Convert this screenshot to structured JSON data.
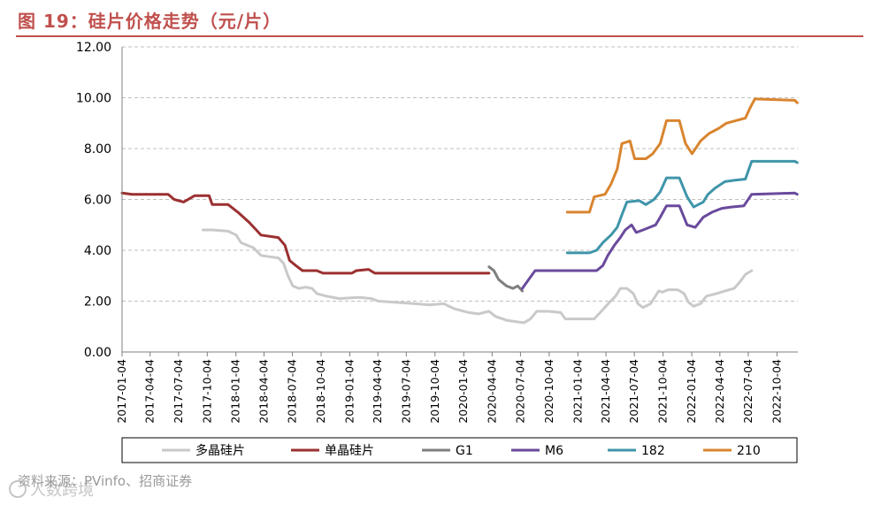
{
  "page": {
    "title": "图 19：硅片价格走势（元/片）",
    "source": "资料来源：PVinfo、招商证券",
    "watermark": "人数跨境",
    "watermark_icon": "chat-bubble-icon"
  },
  "colors": {
    "title": "#c0504d",
    "grid": "#bfbfbf",
    "axis_text": "#000000"
  },
  "chart_data": {
    "type": "line",
    "title": "图 19：硅片价格走势（元/片）",
    "xlabel": "",
    "ylabel": "",
    "ylim": [
      0,
      12
    ],
    "yticks": [
      "0.00",
      "2.00",
      "4.00",
      "6.00",
      "8.00",
      "10.00",
      "12.00"
    ],
    "xlim": [
      "2017-01-04",
      "2022-12-10"
    ],
    "xticks": [
      "2017-01-04",
      "2017-04-04",
      "2017-07-04",
      "2017-10-04",
      "2018-01-04",
      "2018-04-04",
      "2018-07-04",
      "2018-10-04",
      "2019-01-04",
      "2019-04-04",
      "2019-07-04",
      "2019-10-04",
      "2020-01-04",
      "2020-04-04",
      "2020-07-04",
      "2020-10-04",
      "2021-01-04",
      "2021-04-04",
      "2021-07-04",
      "2021-10-04",
      "2022-01-04",
      "2022-04-04",
      "2022-07-04",
      "2022-10-04"
    ],
    "grid": "horizontal dashed",
    "legend_position": "bottom",
    "series": [
      {
        "name": "多晶硅片",
        "color": "#c9c9c9",
        "points": [
          [
            "2017-09-20",
            4.8
          ],
          [
            "2017-10-20",
            4.8
          ],
          [
            "2017-12-10",
            4.75
          ],
          [
            "2018-01-05",
            4.6
          ],
          [
            "2018-01-20",
            4.3
          ],
          [
            "2018-03-01",
            4.1
          ],
          [
            "2018-03-25",
            3.8
          ],
          [
            "2018-04-20",
            3.75
          ],
          [
            "2018-05-20",
            3.7
          ],
          [
            "2018-06-05",
            3.5
          ],
          [
            "2018-06-20",
            3.0
          ],
          [
            "2018-07-05",
            2.6
          ],
          [
            "2018-07-25",
            2.5
          ],
          [
            "2018-08-15",
            2.55
          ],
          [
            "2018-09-05",
            2.5
          ],
          [
            "2018-09-20",
            2.3
          ],
          [
            "2018-10-20",
            2.2
          ],
          [
            "2018-12-01",
            2.1
          ],
          [
            "2019-02-01",
            2.15
          ],
          [
            "2019-03-15",
            2.1
          ],
          [
            "2019-04-05",
            2.0
          ],
          [
            "2019-06-01",
            1.95
          ],
          [
            "2019-08-01",
            1.9
          ],
          [
            "2019-09-15",
            1.85
          ],
          [
            "2019-11-01",
            1.9
          ],
          [
            "2019-12-05",
            1.7
          ],
          [
            "2020-01-20",
            1.55
          ],
          [
            "2020-02-20",
            1.5
          ],
          [
            "2020-03-25",
            1.6
          ],
          [
            "2020-04-15",
            1.4
          ],
          [
            "2020-05-20",
            1.25
          ],
          [
            "2020-06-15",
            1.2
          ],
          [
            "2020-07-15",
            1.15
          ],
          [
            "2020-08-05",
            1.3
          ],
          [
            "2020-08-25",
            1.6
          ],
          [
            "2020-10-01",
            1.6
          ],
          [
            "2020-11-10",
            1.55
          ],
          [
            "2020-11-25",
            1.3
          ],
          [
            "2021-01-20",
            1.3
          ],
          [
            "2021-02-25",
            1.3
          ],
          [
            "2021-03-20",
            1.6
          ],
          [
            "2021-04-15",
            1.95
          ],
          [
            "2021-05-05",
            2.2
          ],
          [
            "2021-05-20",
            2.5
          ],
          [
            "2021-06-10",
            2.5
          ],
          [
            "2021-07-01",
            2.3
          ],
          [
            "2021-07-15",
            1.9
          ],
          [
            "2021-08-01",
            1.75
          ],
          [
            "2021-08-25",
            1.9
          ],
          [
            "2021-09-20",
            2.4
          ],
          [
            "2021-10-01",
            2.35
          ],
          [
            "2021-10-20",
            2.45
          ],
          [
            "2021-11-20",
            2.45
          ],
          [
            "2021-12-10",
            2.3
          ],
          [
            "2021-12-25",
            1.95
          ],
          [
            "2022-01-10",
            1.8
          ],
          [
            "2022-02-01",
            1.9
          ],
          [
            "2022-02-20",
            2.2
          ],
          [
            "2022-03-25",
            2.3
          ],
          [
            "2022-04-20",
            2.4
          ],
          [
            "2022-05-20",
            2.5
          ],
          [
            "2022-06-10",
            2.8
          ],
          [
            "2022-06-25",
            3.05
          ],
          [
            "2022-07-15",
            3.2
          ]
        ]
      },
      {
        "name": "单晶硅片",
        "color": "#9b3030",
        "points": [
          [
            "2017-01-04",
            6.25
          ],
          [
            "2017-02-05",
            6.2
          ],
          [
            "2017-06-01",
            6.2
          ],
          [
            "2017-06-20",
            6.0
          ],
          [
            "2017-07-20",
            5.9
          ],
          [
            "2017-08-25",
            6.15
          ],
          [
            "2017-10-10",
            6.15
          ],
          [
            "2017-10-20",
            5.8
          ],
          [
            "2017-12-10",
            5.8
          ],
          [
            "2018-01-10",
            5.5
          ],
          [
            "2018-02-15",
            5.1
          ],
          [
            "2018-03-10",
            4.8
          ],
          [
            "2018-03-25",
            4.6
          ],
          [
            "2018-05-20",
            4.5
          ],
          [
            "2018-06-10",
            4.2
          ],
          [
            "2018-06-25",
            3.6
          ],
          [
            "2018-07-15",
            3.4
          ],
          [
            "2018-08-05",
            3.2
          ],
          [
            "2018-09-20",
            3.2
          ],
          [
            "2018-10-10",
            3.1
          ],
          [
            "2019-01-10",
            3.1
          ],
          [
            "2019-01-25",
            3.2
          ],
          [
            "2019-03-05",
            3.25
          ],
          [
            "2019-03-25",
            3.1
          ],
          [
            "2020-03-25",
            3.1
          ]
        ]
      },
      {
        "name": "G1",
        "color": "#7f7f7f",
        "points": [
          [
            "2020-03-25",
            3.35
          ],
          [
            "2020-04-10",
            3.2
          ],
          [
            "2020-04-25",
            2.85
          ],
          [
            "2020-05-20",
            2.6
          ],
          [
            "2020-06-10",
            2.5
          ],
          [
            "2020-06-25",
            2.6
          ],
          [
            "2020-07-10",
            2.4
          ]
        ]
      },
      {
        "name": "M6",
        "color": "#6a4a9c",
        "points": [
          [
            "2020-07-10",
            2.5
          ],
          [
            "2020-08-05",
            2.95
          ],
          [
            "2020-08-20",
            3.2
          ],
          [
            "2021-03-05",
            3.2
          ],
          [
            "2021-03-25",
            3.4
          ],
          [
            "2021-04-10",
            3.8
          ],
          [
            "2021-05-01",
            4.2
          ],
          [
            "2021-05-20",
            4.5
          ],
          [
            "2021-06-05",
            4.8
          ],
          [
            "2021-06-25",
            5.0
          ],
          [
            "2021-07-10",
            4.7
          ],
          [
            "2021-08-01",
            4.8
          ],
          [
            "2021-09-10",
            5.0
          ],
          [
            "2021-09-25",
            5.3
          ],
          [
            "2021-10-15",
            5.75
          ],
          [
            "2021-11-25",
            5.75
          ],
          [
            "2021-12-20",
            5.0
          ],
          [
            "2022-01-15",
            4.9
          ],
          [
            "2022-02-10",
            5.3
          ],
          [
            "2022-03-10",
            5.5
          ],
          [
            "2022-04-10",
            5.65
          ],
          [
            "2022-05-10",
            5.7
          ],
          [
            "2022-06-20",
            5.75
          ],
          [
            "2022-07-15",
            6.2
          ],
          [
            "2022-11-30",
            6.25
          ],
          [
            "2022-12-08",
            6.2
          ]
        ]
      },
      {
        "name": "182",
        "color": "#3f95aa",
        "points": [
          [
            "2020-12-01",
            3.9
          ],
          [
            "2021-02-10",
            3.9
          ],
          [
            "2021-03-05",
            4.0
          ],
          [
            "2021-03-25",
            4.3
          ],
          [
            "2021-04-20",
            4.6
          ],
          [
            "2021-05-10",
            4.9
          ],
          [
            "2021-05-25",
            5.4
          ],
          [
            "2021-06-10",
            5.9
          ],
          [
            "2021-07-20",
            5.95
          ],
          [
            "2021-08-10",
            5.8
          ],
          [
            "2021-09-05",
            6.0
          ],
          [
            "2021-09-25",
            6.3
          ],
          [
            "2021-10-15",
            6.85
          ],
          [
            "2021-11-25",
            6.85
          ],
          [
            "2021-12-20",
            6.1
          ],
          [
            "2022-01-10",
            5.7
          ],
          [
            "2022-02-10",
            5.9
          ],
          [
            "2022-02-25",
            6.2
          ],
          [
            "2022-03-20",
            6.45
          ],
          [
            "2022-04-20",
            6.7
          ],
          [
            "2022-05-20",
            6.75
          ],
          [
            "2022-06-25",
            6.8
          ],
          [
            "2022-07-15",
            7.5
          ],
          [
            "2022-11-30",
            7.5
          ],
          [
            "2022-12-08",
            7.45
          ]
        ]
      },
      {
        "name": "210",
        "color": "#d9852f",
        "points": [
          [
            "2020-12-01",
            5.5
          ],
          [
            "2021-02-10",
            5.5
          ],
          [
            "2021-02-25",
            6.1
          ],
          [
            "2021-04-01",
            6.2
          ],
          [
            "2021-04-20",
            6.6
          ],
          [
            "2021-05-10",
            7.2
          ],
          [
            "2021-05-25",
            8.2
          ],
          [
            "2021-06-20",
            8.3
          ],
          [
            "2021-07-05",
            7.6
          ],
          [
            "2021-08-10",
            7.6
          ],
          [
            "2021-09-01",
            7.8
          ],
          [
            "2021-09-25",
            8.2
          ],
          [
            "2021-10-15",
            9.1
          ],
          [
            "2021-11-25",
            9.1
          ],
          [
            "2021-12-15",
            8.2
          ],
          [
            "2022-01-05",
            7.8
          ],
          [
            "2022-02-01",
            8.3
          ],
          [
            "2022-03-01",
            8.6
          ],
          [
            "2022-04-01",
            8.8
          ],
          [
            "2022-04-25",
            9.0
          ],
          [
            "2022-05-25",
            9.1
          ],
          [
            "2022-06-25",
            9.2
          ],
          [
            "2022-07-10",
            9.6
          ],
          [
            "2022-07-25",
            9.95
          ],
          [
            "2022-11-30",
            9.9
          ],
          [
            "2022-12-08",
            9.8
          ]
        ]
      }
    ]
  }
}
